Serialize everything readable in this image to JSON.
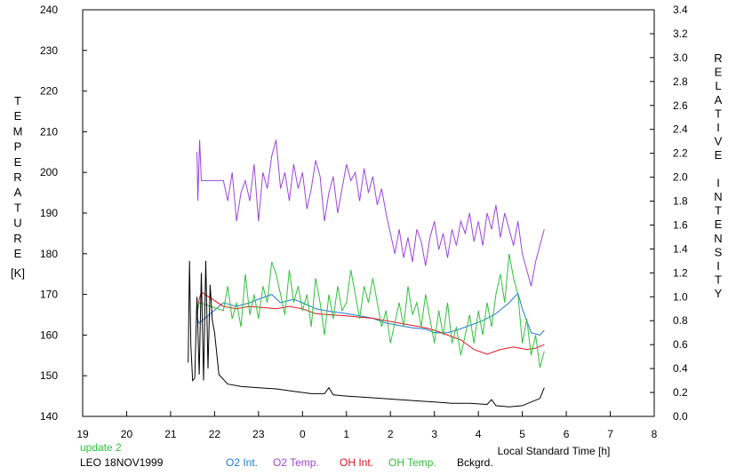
{
  "chart_data": {
    "type": "line",
    "left_axis_label": "TEMPERATURE",
    "left_axis_unit": "[K]",
    "right_axis_label": "RELATIVE INTENSITY",
    "xlabel": "Local Standard Time [h]",
    "ylim": [
      140,
      240
    ],
    "y2lim": [
      0.0,
      3.4
    ],
    "x_ticks": [
      {
        "value": 19,
        "label": "19"
      },
      {
        "value": 20,
        "label": "20"
      },
      {
        "value": 21,
        "label": "21"
      },
      {
        "value": 22,
        "label": "22"
      },
      {
        "value": 23,
        "label": "23"
      },
      {
        "value": 24,
        "label": "0"
      },
      {
        "value": 25,
        "label": "1"
      },
      {
        "value": 26,
        "label": "2"
      },
      {
        "value": 27,
        "label": "3"
      },
      {
        "value": 28,
        "label": "4"
      },
      {
        "value": 29,
        "label": "5"
      },
      {
        "value": 30,
        "label": "6"
      },
      {
        "value": 31,
        "label": "7"
      },
      {
        "value": 32,
        "label": "8"
      }
    ],
    "y_ticks": [
      140,
      150,
      160,
      170,
      180,
      190,
      200,
      210,
      220,
      230,
      240
    ],
    "y2_ticks": [
      "0.0",
      "0.2",
      "0.4",
      "0.6",
      "0.8",
      "1.0",
      "1.2",
      "1.4",
      "1.6",
      "1.8",
      "2.0",
      "2.2",
      "2.4",
      "2.6",
      "2.8",
      "3.0",
      "3.2",
      "3.4"
    ],
    "series": [
      {
        "name": "O2 Int.",
        "axis": "right",
        "color": "#1f78d6",
        "points": [
          [
            21.6,
            0.82
          ],
          [
            21.65,
            0.78
          ],
          [
            22.2,
            0.95
          ],
          [
            22.5,
            0.92
          ],
          [
            22.8,
            0.95
          ],
          [
            23.0,
            0.98
          ],
          [
            23.3,
            1.02
          ],
          [
            23.5,
            0.95
          ],
          [
            23.8,
            0.98
          ],
          [
            24.0,
            0.95
          ],
          [
            24.3,
            0.9
          ],
          [
            24.6,
            0.88
          ],
          [
            25.0,
            0.86
          ],
          [
            25.3,
            0.84
          ],
          [
            25.6,
            0.82
          ],
          [
            25.9,
            0.78
          ],
          [
            26.2,
            0.76
          ],
          [
            26.5,
            0.74
          ],
          [
            26.8,
            0.73
          ],
          [
            27.0,
            0.7
          ],
          [
            27.3,
            0.7
          ],
          [
            27.5,
            0.72
          ],
          [
            27.8,
            0.76
          ],
          [
            28.1,
            0.8
          ],
          [
            28.4,
            0.86
          ],
          [
            28.7,
            0.95
          ],
          [
            28.9,
            1.03
          ],
          [
            29.0,
            0.9
          ],
          [
            29.2,
            0.7
          ],
          [
            29.4,
            0.68
          ],
          [
            29.5,
            0.72
          ]
        ]
      },
      {
        "name": "O2 Temp.",
        "axis": "left",
        "color": "#9b45d8",
        "points": [
          [
            21.6,
            205
          ],
          [
            21.62,
            193
          ],
          [
            21.66,
            208
          ],
          [
            21.7,
            198
          ],
          [
            22.2,
            198
          ],
          [
            22.3,
            193
          ],
          [
            22.4,
            200
          ],
          [
            22.5,
            188
          ],
          [
            22.6,
            195
          ],
          [
            22.7,
            198
          ],
          [
            22.8,
            193
          ],
          [
            22.9,
            202
          ],
          [
            23.0,
            188
          ],
          [
            23.1,
            200
          ],
          [
            23.2,
            196
          ],
          [
            23.3,
            204
          ],
          [
            23.4,
            208
          ],
          [
            23.5,
            196
          ],
          [
            23.6,
            200
          ],
          [
            23.7,
            193
          ],
          [
            23.8,
            202
          ],
          [
            23.9,
            196
          ],
          [
            24.0,
            200
          ],
          [
            24.1,
            191
          ],
          [
            24.2,
            196
          ],
          [
            24.3,
            203
          ],
          [
            24.4,
            199
          ],
          [
            24.5,
            188
          ],
          [
            24.6,
            195
          ],
          [
            24.7,
            199
          ],
          [
            24.8,
            190
          ],
          [
            24.9,
            196
          ],
          [
            25.0,
            202
          ],
          [
            25.1,
            198
          ],
          [
            25.2,
            200
          ],
          [
            25.3,
            193
          ],
          [
            25.4,
            201
          ],
          [
            25.5,
            195
          ],
          [
            25.6,
            199
          ],
          [
            25.7,
            192
          ],
          [
            25.8,
            196
          ],
          [
            25.9,
            190
          ],
          [
            26.0,
            185
          ],
          [
            26.1,
            180
          ],
          [
            26.2,
            186
          ],
          [
            26.3,
            179
          ],
          [
            26.4,
            184
          ],
          [
            26.5,
            178
          ],
          [
            26.6,
            186
          ],
          [
            26.7,
            183
          ],
          [
            26.8,
            177
          ],
          [
            26.9,
            184
          ],
          [
            27.0,
            188
          ],
          [
            27.1,
            181
          ],
          [
            27.2,
            185
          ],
          [
            27.3,
            179
          ],
          [
            27.4,
            186
          ],
          [
            27.5,
            182
          ],
          [
            27.6,
            188
          ],
          [
            27.7,
            185
          ],
          [
            27.8,
            190
          ],
          [
            27.9,
            183
          ],
          [
            28.0,
            188
          ],
          [
            28.1,
            182
          ],
          [
            28.2,
            190
          ],
          [
            28.3,
            186
          ],
          [
            28.4,
            192
          ],
          [
            28.5,
            184
          ],
          [
            28.6,
            190
          ],
          [
            28.7,
            186
          ],
          [
            28.8,
            182
          ],
          [
            28.9,
            188
          ],
          [
            29.0,
            180
          ],
          [
            29.1,
            176
          ],
          [
            29.2,
            172
          ],
          [
            29.3,
            178
          ],
          [
            29.4,
            182
          ],
          [
            29.5,
            186
          ]
        ]
      },
      {
        "name": "OH Int.",
        "axis": "right",
        "color": "#e0141e",
        "points": [
          [
            21.6,
            0.86
          ],
          [
            21.65,
            0.98
          ],
          [
            21.7,
            1.04
          ],
          [
            22.2,
            0.92
          ],
          [
            22.5,
            0.9
          ],
          [
            22.8,
            0.92
          ],
          [
            23.1,
            0.91
          ],
          [
            23.4,
            0.9
          ],
          [
            23.7,
            0.92
          ],
          [
            24.0,
            0.9
          ],
          [
            24.3,
            0.86
          ],
          [
            24.6,
            0.85
          ],
          [
            25.0,
            0.84
          ],
          [
            25.3,
            0.83
          ],
          [
            25.6,
            0.82
          ],
          [
            25.9,
            0.8
          ],
          [
            26.2,
            0.78
          ],
          [
            26.5,
            0.76
          ],
          [
            26.8,
            0.74
          ],
          [
            27.0,
            0.72
          ],
          [
            27.3,
            0.68
          ],
          [
            27.6,
            0.64
          ],
          [
            27.9,
            0.56
          ],
          [
            28.2,
            0.52
          ],
          [
            28.5,
            0.56
          ],
          [
            28.8,
            0.58
          ],
          [
            29.1,
            0.56
          ],
          [
            29.3,
            0.57
          ],
          [
            29.5,
            0.6
          ]
        ]
      },
      {
        "name": "OH Temp.",
        "axis": "left",
        "color": "#2fc23a",
        "points": [
          [
            21.6,
            165
          ],
          [
            21.65,
            168
          ],
          [
            22.2,
            166
          ],
          [
            22.3,
            172
          ],
          [
            22.4,
            164
          ],
          [
            22.5,
            168
          ],
          [
            22.6,
            162
          ],
          [
            22.7,
            175
          ],
          [
            22.8,
            165
          ],
          [
            22.9,
            170
          ],
          [
            23.0,
            164
          ],
          [
            23.1,
            172
          ],
          [
            23.2,
            168
          ],
          [
            23.3,
            178
          ],
          [
            23.4,
            175
          ],
          [
            23.5,
            170
          ],
          [
            23.6,
            165
          ],
          [
            23.7,
            176
          ],
          [
            23.8,
            168
          ],
          [
            23.9,
            172
          ],
          [
            24.0,
            166
          ],
          [
            24.1,
            170
          ],
          [
            24.2,
            162
          ],
          [
            24.3,
            174
          ],
          [
            24.4,
            168
          ],
          [
            24.5,
            160
          ],
          [
            24.6,
            170
          ],
          [
            24.7,
            164
          ],
          [
            24.8,
            172
          ],
          [
            24.9,
            166
          ],
          [
            25.0,
            168
          ],
          [
            25.1,
            176
          ],
          [
            25.2,
            170
          ],
          [
            25.3,
            164
          ],
          [
            25.4,
            172
          ],
          [
            25.5,
            168
          ],
          [
            25.6,
            174
          ],
          [
            25.7,
            168
          ],
          [
            25.8,
            162
          ],
          [
            25.9,
            166
          ],
          [
            26.0,
            158
          ],
          [
            26.1,
            163
          ],
          [
            26.2,
            168
          ],
          [
            26.3,
            162
          ],
          [
            26.4,
            172
          ],
          [
            26.5,
            165
          ],
          [
            26.6,
            168
          ],
          [
            26.7,
            162
          ],
          [
            26.8,
            170
          ],
          [
            26.9,
            164
          ],
          [
            27.0,
            158
          ],
          [
            27.1,
            166
          ],
          [
            27.2,
            160
          ],
          [
            27.3,
            168
          ],
          [
            27.4,
            158
          ],
          [
            27.5,
            162
          ],
          [
            27.6,
            155
          ],
          [
            27.7,
            160
          ],
          [
            27.8,
            165
          ],
          [
            27.9,
            158
          ],
          [
            28.0,
            166
          ],
          [
            28.1,
            160
          ],
          [
            28.2,
            168
          ],
          [
            28.3,
            162
          ],
          [
            28.4,
            170
          ],
          [
            28.5,
            175
          ],
          [
            28.6,
            168
          ],
          [
            28.7,
            180
          ],
          [
            28.8,
            174
          ],
          [
            28.9,
            170
          ],
          [
            29.0,
            158
          ],
          [
            29.1,
            164
          ],
          [
            29.2,
            155
          ],
          [
            29.3,
            160
          ],
          [
            29.4,
            152
          ],
          [
            29.5,
            156
          ]
        ]
      },
      {
        "name": "Bckgrd.",
        "axis": "right",
        "color": "#000000",
        "points": [
          [
            21.4,
            0.45
          ],
          [
            21.43,
            1.3
          ],
          [
            21.46,
            0.6
          ],
          [
            21.5,
            0.3
          ],
          [
            21.55,
            0.32
          ],
          [
            21.6,
            1.0
          ],
          [
            21.65,
            0.35
          ],
          [
            21.7,
            1.2
          ],
          [
            21.75,
            0.3
          ],
          [
            21.8,
            1.3
          ],
          [
            21.85,
            0.4
          ],
          [
            21.9,
            1.1
          ],
          [
            21.95,
            0.8
          ],
          [
            22.0,
            0.7
          ],
          [
            22.1,
            0.35
          ],
          [
            22.3,
            0.27
          ],
          [
            22.6,
            0.25
          ],
          [
            23.0,
            0.24
          ],
          [
            23.4,
            0.23
          ],
          [
            23.8,
            0.21
          ],
          [
            24.2,
            0.19
          ],
          [
            24.5,
            0.19
          ],
          [
            24.6,
            0.24
          ],
          [
            24.7,
            0.18
          ],
          [
            25.0,
            0.17
          ],
          [
            25.4,
            0.16
          ],
          [
            25.8,
            0.15
          ],
          [
            26.2,
            0.14
          ],
          [
            26.6,
            0.13
          ],
          [
            27.0,
            0.12
          ],
          [
            27.4,
            0.11
          ],
          [
            27.8,
            0.11
          ],
          [
            28.2,
            0.1
          ],
          [
            28.3,
            0.14
          ],
          [
            28.4,
            0.09
          ],
          [
            28.7,
            0.08
          ],
          [
            29.0,
            0.09
          ],
          [
            29.2,
            0.12
          ],
          [
            29.4,
            0.15
          ],
          [
            29.5,
            0.24
          ]
        ]
      }
    ]
  },
  "footer": {
    "update_text": "update 2",
    "station_text": "LEO 18NOV1999"
  }
}
